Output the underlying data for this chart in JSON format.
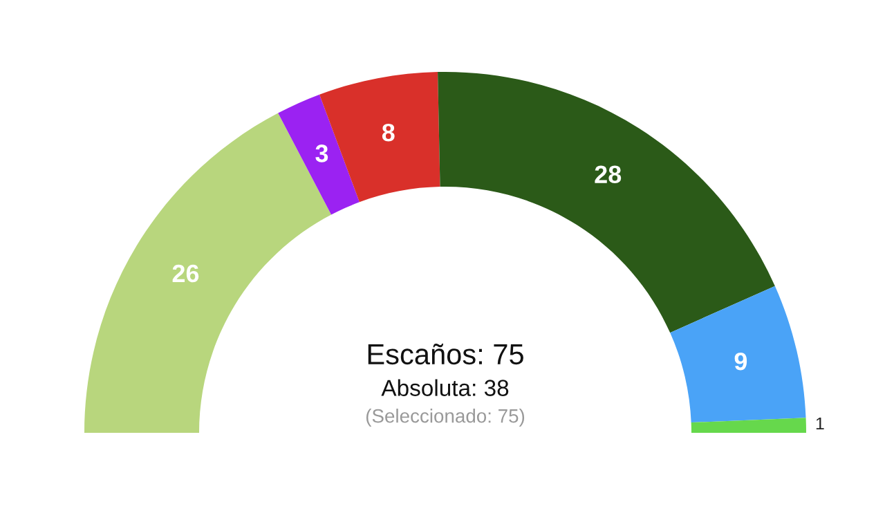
{
  "chart_data": {
    "type": "donut",
    "categories": [
      null,
      null,
      null,
      null,
      null,
      null
    ],
    "values": [
      26,
      3,
      8,
      28,
      9,
      1
    ],
    "colors": [
      "#b8d67d",
      "#9b22f2",
      "#d9302a",
      "#2b5a18",
      "#4aa3f7",
      "#66d84c"
    ],
    "data_labels": true,
    "annotations": [
      "Escaños: 75",
      "Absoluta: 38",
      "(Seleccionado: 75)"
    ]
  }
}
